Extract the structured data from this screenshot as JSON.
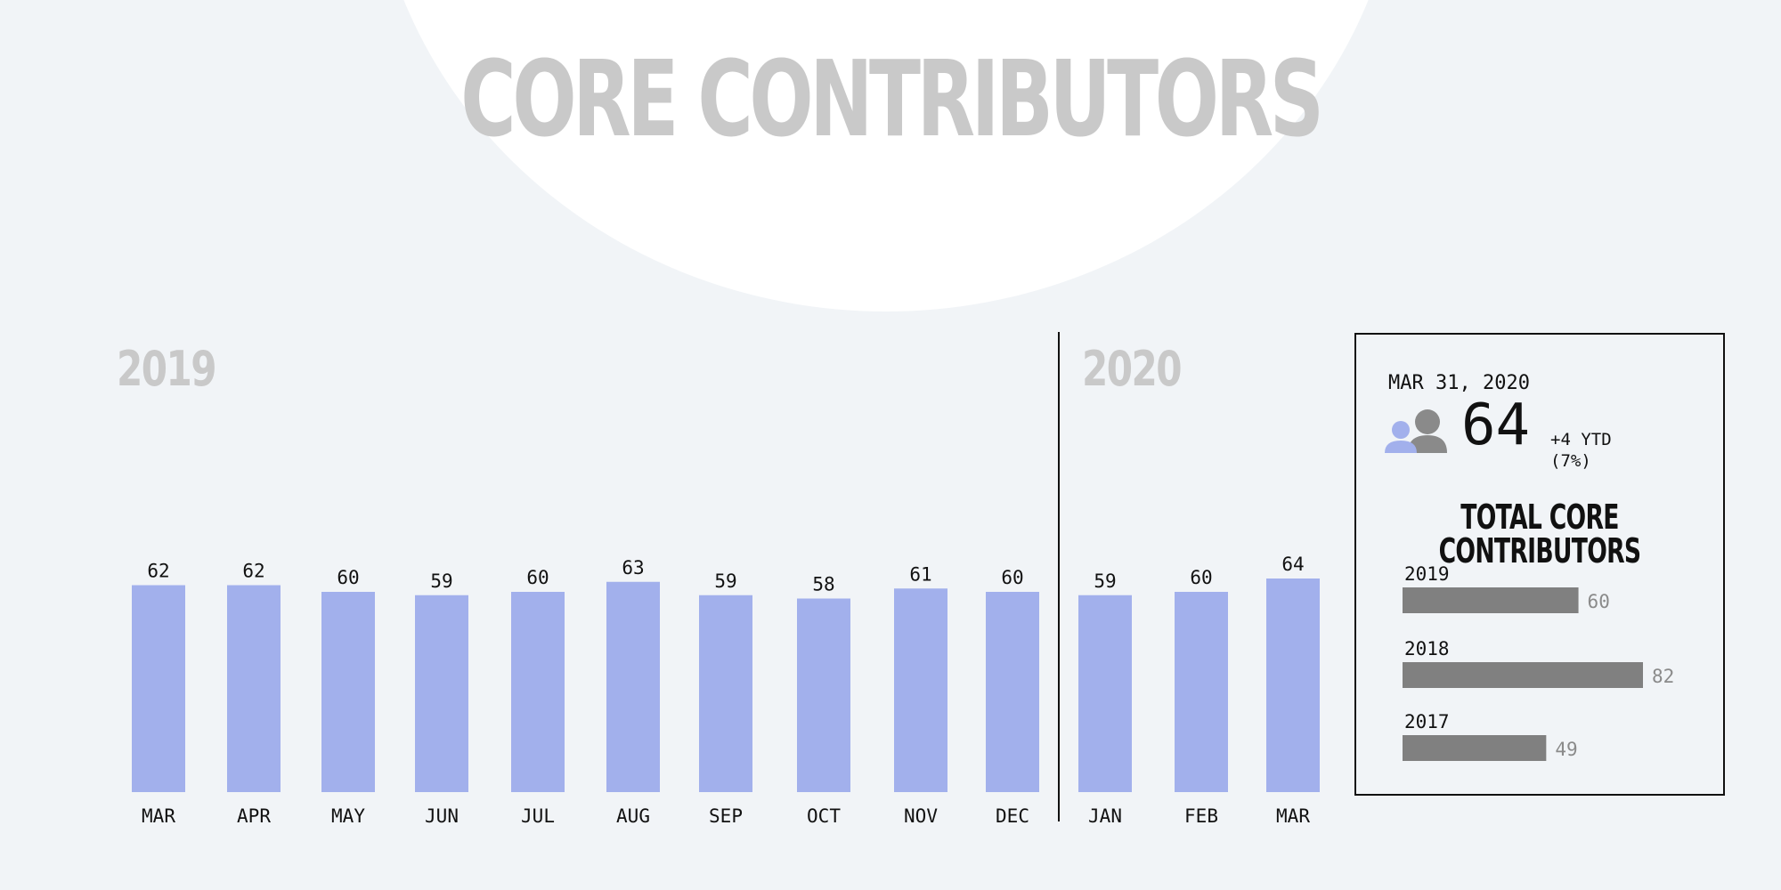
{
  "title": "CORE CONTRIBUTORS",
  "year_labels": [
    "2019",
    "2020"
  ],
  "chart_data": [
    {
      "type": "bar",
      "title": "CORE CONTRIBUTORS",
      "categories": [
        "MAR",
        "APR",
        "MAY",
        "JUN",
        "JUL",
        "AUG",
        "SEP",
        "OCT",
        "NOV",
        "DEC",
        "JAN",
        "FEB",
        "MAR"
      ],
      "years": [
        "2019",
        "2019",
        "2019",
        "2019",
        "2019",
        "2019",
        "2019",
        "2019",
        "2019",
        "2019",
        "2020",
        "2020",
        "2020"
      ],
      "values": [
        62,
        62,
        60,
        59,
        60,
        63,
        59,
        58,
        61,
        60,
        59,
        60,
        64
      ],
      "ylim": [
        0,
        64
      ],
      "color": "#a2b0ec",
      "grid": false
    },
    {
      "type": "bar",
      "orientation": "horizontal",
      "title": "TOTAL CORE CONTRIBUTORS",
      "categories": [
        "2019",
        "2018",
        "2017"
      ],
      "values": [
        60,
        82,
        49
      ],
      "xlim": [
        0,
        82
      ],
      "color": "#808080"
    }
  ],
  "summary": {
    "date": "MAR 31, 2020",
    "value": "64",
    "ytd_change": "+4 YTD",
    "ytd_percent": "(7%)",
    "icon": "people-icon",
    "icon_colors": [
      "#a2b0ec",
      "#8a8a8a"
    ]
  }
}
